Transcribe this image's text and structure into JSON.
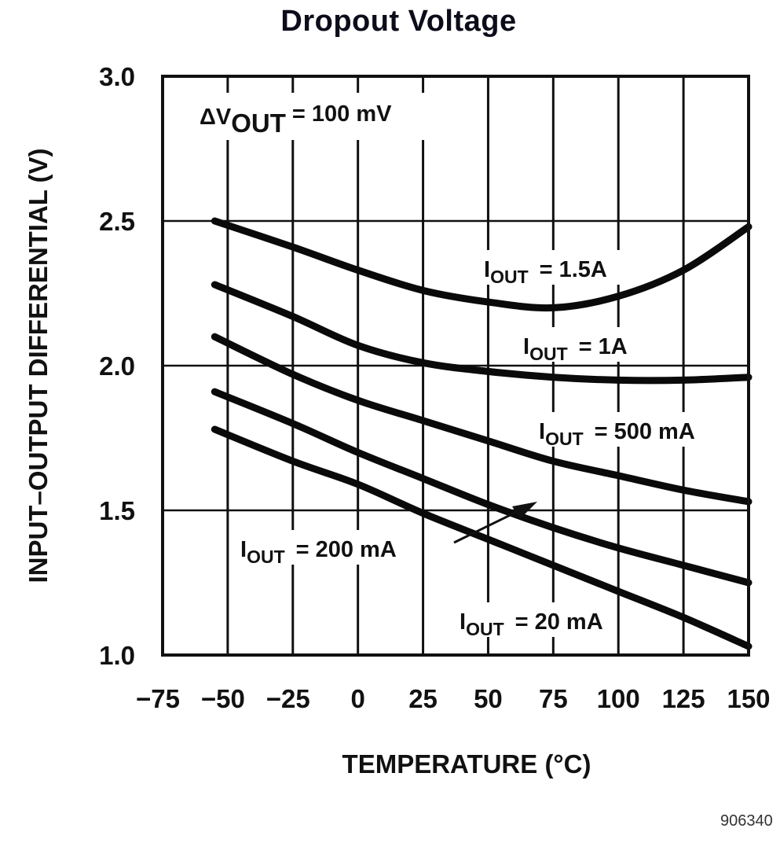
{
  "chart_data": {
    "type": "line",
    "title": "Dropout Voltage",
    "xlabel": "TEMPERATURE (°C)",
    "ylabel": "INPUT–OUTPUT DIFFERENTIAL (V)",
    "xlim": [
      -75,
      150
    ],
    "ylim": [
      1.0,
      3.0
    ],
    "x_ticks": [
      -75,
      -50,
      -25,
      0,
      25,
      50,
      75,
      100,
      125,
      150
    ],
    "x_tick_labels": [
      "−75",
      "−50",
      "−25",
      "0",
      "25",
      "50",
      "75",
      "100",
      "125",
      "150"
    ],
    "y_ticks": [
      1.0,
      1.5,
      2.0,
      2.5,
      3.0
    ],
    "y_tick_labels": [
      "1.0",
      "1.5",
      "2.0",
      "2.5",
      "3.0"
    ],
    "grid": true,
    "condition_annotation": {
      "prefix": "ΔV",
      "subscript": "OUT",
      "suffix": " = 100 mV"
    },
    "series": [
      {
        "name": "IOUT = 1.5A",
        "label_main": "I",
        "label_sub": "OUT",
        "label_value": "=  1.5A",
        "x": [
          -55,
          -25,
          0,
          25,
          50,
          75,
          100,
          125,
          150
        ],
        "values": [
          2.5,
          2.41,
          2.33,
          2.26,
          2.22,
          2.2,
          2.24,
          2.33,
          2.48
        ]
      },
      {
        "name": "IOUT = 1A",
        "label_main": "I",
        "label_sub": "OUT",
        "label_value": "=  1A",
        "x": [
          -55,
          -25,
          0,
          25,
          50,
          75,
          100,
          125,
          150
        ],
        "values": [
          2.28,
          2.17,
          2.07,
          2.01,
          1.98,
          1.96,
          1.95,
          1.95,
          1.96
        ]
      },
      {
        "name": "IOUT = 500 mA",
        "label_main": "I",
        "label_sub": "OUT",
        "label_value": "=  500 mA",
        "x": [
          -55,
          -25,
          0,
          25,
          50,
          75,
          100,
          125,
          150
        ],
        "values": [
          2.1,
          1.97,
          1.88,
          1.81,
          1.74,
          1.67,
          1.62,
          1.57,
          1.53
        ]
      },
      {
        "name": "IOUT = 200 mA",
        "label_main": "I",
        "label_sub": "OUT",
        "label_value": "=  200 mA",
        "x": [
          -55,
          -25,
          0,
          25,
          50,
          75,
          100,
          125,
          150
        ],
        "values": [
          1.91,
          1.8,
          1.7,
          1.61,
          1.52,
          1.44,
          1.37,
          1.31,
          1.25
        ]
      },
      {
        "name": "IOUT = 20 mA",
        "label_main": "I",
        "label_sub": "OUT",
        "label_value": "=  20 mA",
        "x": [
          -55,
          -25,
          0,
          25,
          50,
          75,
          100,
          125,
          150
        ],
        "values": [
          1.78,
          1.67,
          1.59,
          1.49,
          1.4,
          1.31,
          1.22,
          1.13,
          1.03
        ]
      }
    ],
    "figure_id": "906340"
  }
}
